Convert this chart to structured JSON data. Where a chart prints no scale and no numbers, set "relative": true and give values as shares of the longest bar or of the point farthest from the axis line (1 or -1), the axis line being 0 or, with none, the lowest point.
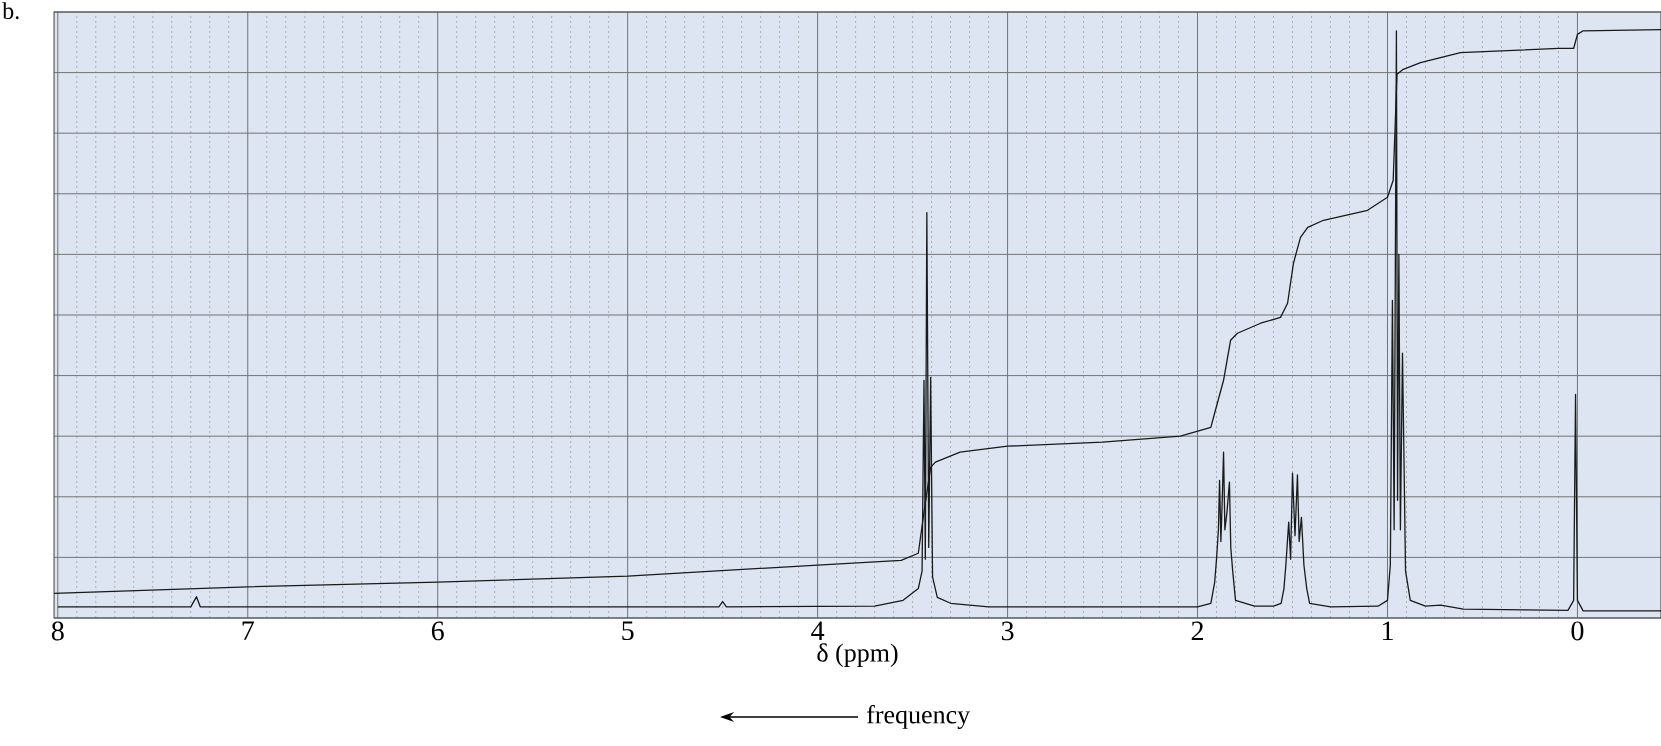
{
  "chart_data": {
    "type": "line",
    "relative": true,
    "xlabel": "δ (ppm)",
    "annotations": [
      "b.",
      "frequency"
    ],
    "xlim": [
      8.02,
      -0.44
    ],
    "xticks": [
      8,
      7,
      6,
      5,
      4,
      3,
      2,
      1,
      0
    ],
    "grid": true,
    "tick_labels": "x",
    "series": [
      {
        "color": "#1a1a1a",
        "x": [
          8.0,
          7.3,
          7.27,
          7.25,
          4.52,
          4.5,
          4.48,
          3.7,
          3.55,
          3.47,
          3.45,
          3.44,
          3.433,
          3.425,
          3.415,
          3.405,
          3.395,
          3.37,
          3.3,
          3.1,
          2.0,
          1.93,
          1.91,
          1.9,
          1.89,
          1.884,
          1.877,
          1.87,
          1.863,
          1.856,
          1.845,
          1.832,
          1.825,
          1.815,
          1.8,
          1.7,
          1.6,
          1.56,
          1.545,
          1.535,
          1.52,
          1.51,
          1.5,
          1.487,
          1.474,
          1.465,
          1.453,
          1.44,
          1.425,
          1.41,
          1.3,
          1.05,
          1.0,
          0.985,
          0.974,
          0.965,
          0.953,
          0.947,
          0.94,
          0.932,
          0.921,
          0.905,
          0.88,
          0.8,
          0.72,
          0.6,
          0.05,
          0.02,
          0.01,
          0.0,
          -0.03,
          -0.44
        ],
        "values": [
          0.019,
          0.019,
          0.036,
          0.019,
          0.019,
          0.028,
          0.019,
          0.02,
          0.03,
          0.05,
          0.08,
          0.404,
          0.1,
          0.689,
          0.12,
          0.409,
          0.07,
          0.035,
          0.025,
          0.019,
          0.019,
          0.025,
          0.06,
          0.1,
          0.15,
          0.234,
          0.13,
          0.2,
          0.282,
          0.15,
          0.18,
          0.231,
          0.12,
          0.08,
          0.03,
          0.02,
          0.02,
          0.025,
          0.05,
          0.09,
          0.163,
          0.1,
          0.246,
          0.14,
          0.243,
          0.13,
          0.171,
          0.09,
          0.05,
          0.025,
          0.019,
          0.02,
          0.03,
          0.09,
          0.54,
          0.15,
          0.998,
          0.2,
          0.618,
          0.15,
          0.45,
          0.08,
          0.03,
          0.02,
          0.022,
          0.015,
          0.013,
          0.03,
          0.38,
          0.03,
          0.012,
          0.012
        ]
      },
      {
        "color": "#1a1a1a",
        "x": [
          8.02,
          7.0,
          6.0,
          5.0,
          4.0,
          3.56,
          3.47,
          3.44,
          3.405,
          3.38,
          3.25,
          3.0,
          2.5,
          2.09,
          1.93,
          1.91,
          1.863,
          1.826,
          1.79,
          1.668,
          1.563,
          1.526,
          1.495,
          1.458,
          1.42,
          1.337,
          1.105,
          1.0,
          0.97,
          0.95,
          0.92,
          0.826,
          0.616,
          0.4,
          0.1,
          0.02,
          0.0,
          -0.03,
          -0.44
        ],
        "values": [
          0.042,
          0.053,
          0.061,
          0.071,
          0.09,
          0.098,
          0.11,
          0.18,
          0.256,
          0.265,
          0.282,
          0.292,
          0.299,
          0.309,
          0.324,
          0.348,
          0.404,
          0.472,
          0.484,
          0.501,
          0.511,
          0.535,
          0.603,
          0.647,
          0.664,
          0.676,
          0.693,
          0.715,
          0.744,
          0.924,
          0.932,
          0.944,
          0.961,
          0.964,
          0.968,
          0.968,
          0.992,
          0.998,
          1.0
        ]
      }
    ]
  }
}
